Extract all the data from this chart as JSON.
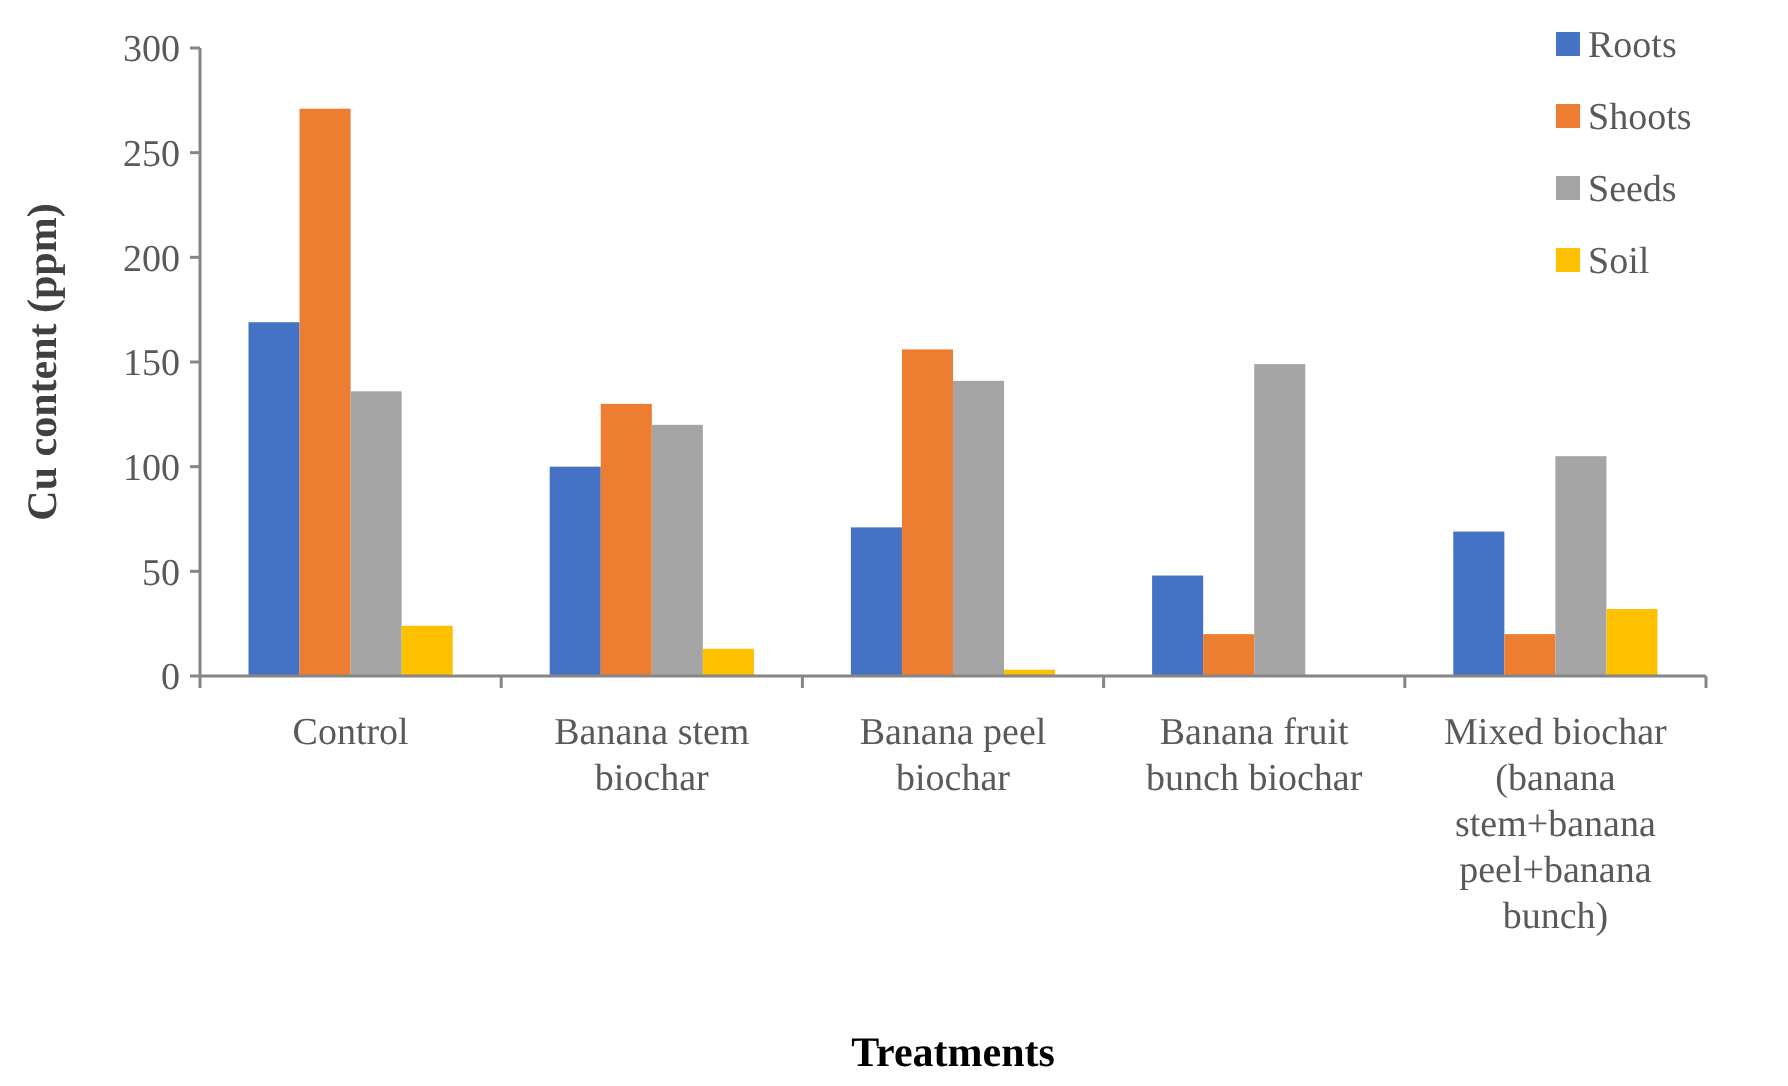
{
  "chart_data": {
    "type": "bar",
    "xlabel": "Treatments",
    "ylabel": "Cu content (ppm)",
    "categories": [
      "Control",
      "Banana stem biochar",
      "Banana peel biochar",
      "Banana fruit bunch biochar",
      "Mixed biochar (banana stem+banana peel+banana bunch)"
    ],
    "series": [
      {
        "name": "Roots",
        "color": "#4472c4",
        "values": [
          169,
          100,
          71,
          48,
          69
        ]
      },
      {
        "name": "Shoots",
        "color": "#ed7d31",
        "values": [
          271,
          130,
          156,
          20,
          20
        ]
      },
      {
        "name": "Seeds",
        "color": "#a5a5a5",
        "values": [
          136,
          120,
          141,
          149,
          105
        ]
      },
      {
        "name": "Soil",
        "color": "#ffc000",
        "values": [
          24,
          13,
          3,
          null,
          32
        ]
      }
    ],
    "ylim": [
      0,
      300
    ],
    "yticks": [
      0,
      50,
      100,
      150,
      200,
      250,
      300
    ],
    "grid": false,
    "legend": "top right"
  }
}
